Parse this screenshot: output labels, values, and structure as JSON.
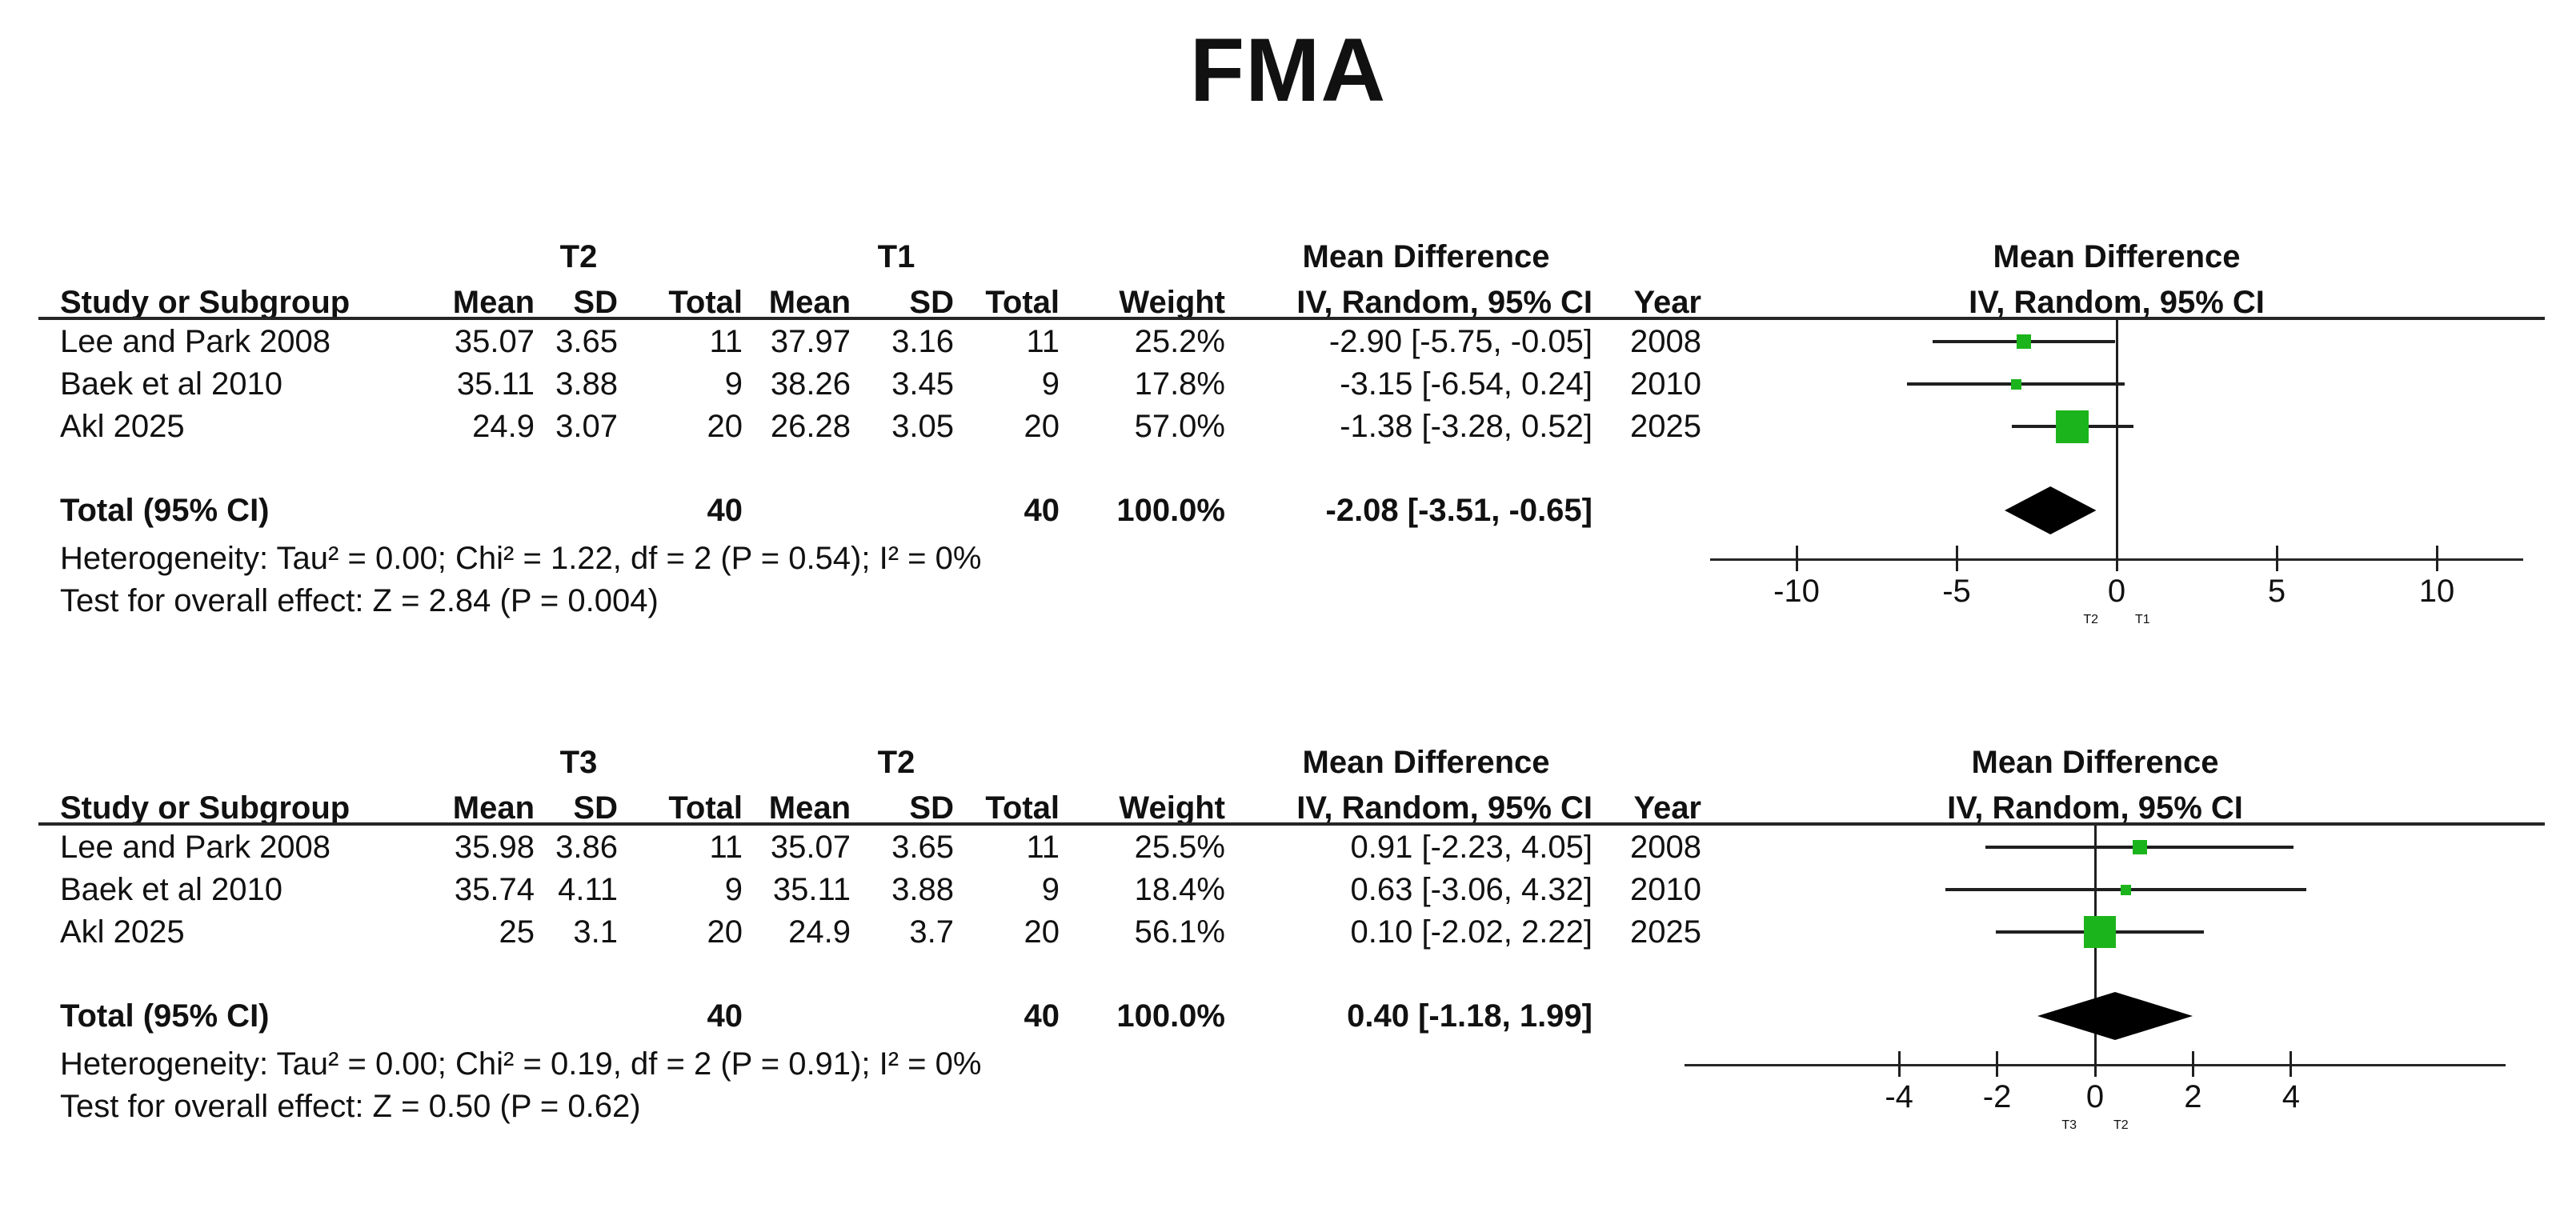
{
  "title": "FMA",
  "colors": {
    "marker_green": "#1cb41c",
    "diamond_black": "#000000",
    "line_dark": "#1f1f1f"
  },
  "chart_data": [
    {
      "type": "scatter",
      "plot_title": "FMA",
      "groups": {
        "exp": "T2",
        "ctrl": "T1"
      },
      "col_headers": {
        "study": "Study or Subgroup",
        "mean": "Mean",
        "sd": "SD",
        "total": "Total",
        "weight": "Weight",
        "effect_title": "Mean Difference",
        "effect_sub": "IV, Random, 95% CI",
        "year": "Year"
      },
      "rows": [
        {
          "study": "Lee and Park 2008",
          "mean_e": "35.07",
          "sd_e": "3.65",
          "n_e": "11",
          "mean_c": "37.97",
          "sd_c": "3.16",
          "n_c": "11",
          "weight": "25.2%",
          "weight_val": 25.2,
          "ci_text": "-2.90 [-5.75, -0.05]",
          "year": "2008",
          "est": -2.9,
          "lo": -5.75,
          "hi": -0.05
        },
        {
          "study": "Baek et al 2010",
          "mean_e": "35.11",
          "sd_e": "3.88",
          "n_e": "9",
          "mean_c": "38.26",
          "sd_c": "3.45",
          "n_c": "9",
          "weight": "17.8%",
          "weight_val": 17.8,
          "ci_text": "-3.15 [-6.54, 0.24]",
          "year": "2010",
          "est": -3.15,
          "lo": -6.54,
          "hi": 0.24
        },
        {
          "study": "Akl 2025",
          "mean_e": "24.9",
          "sd_e": "3.07",
          "n_e": "20",
          "mean_c": "26.28",
          "sd_c": "3.05",
          "n_c": "20",
          "weight": "57.0%",
          "weight_val": 57.0,
          "ci_text": "-1.38 [-3.28, 0.52]",
          "year": "2025",
          "est": -1.38,
          "lo": -3.28,
          "hi": 0.52
        }
      ],
      "total": {
        "label": "Total (95% CI)",
        "n_e": "40",
        "n_c": "40",
        "weight": "100.0%",
        "ci_text": "-2.08 [-3.51, -0.65]",
        "est": -2.08,
        "lo": -3.51,
        "hi": -0.65
      },
      "heterogeneity": "Heterogeneity: Tau² = 0.00; Chi² = 1.22, df = 2 (P = 0.54); I² = 0%",
      "overall_test": "Test for overall effect: Z = 2.84 (P = 0.004)",
      "axis": {
        "min": -12.5,
        "max": 12.5,
        "ticks": [
          -10,
          -5,
          0,
          5,
          10
        ],
        "tick_labels": [
          "-10",
          "-5",
          "0",
          "5",
          "10"
        ],
        "favours_left": "T2",
        "favours_right": "T1"
      }
    },
    {
      "type": "scatter",
      "plot_title": "FMA",
      "groups": {
        "exp": "T3",
        "ctrl": "T2"
      },
      "col_headers": {
        "study": "Study or Subgroup",
        "mean": "Mean",
        "sd": "SD",
        "total": "Total",
        "weight": "Weight",
        "effect_title": "Mean Difference",
        "effect_sub": "IV, Random, 95% CI",
        "year": "Year"
      },
      "rows": [
        {
          "study": "Lee and Park 2008",
          "mean_e": "35.98",
          "sd_e": "3.86",
          "n_e": "11",
          "mean_c": "35.07",
          "sd_c": "3.65",
          "n_c": "11",
          "weight": "25.5%",
          "weight_val": 25.5,
          "ci_text": "0.91 [-2.23, 4.05]",
          "year": "2008",
          "est": 0.91,
          "lo": -2.23,
          "hi": 4.05
        },
        {
          "study": "Baek et al 2010",
          "mean_e": "35.74",
          "sd_e": "4.11",
          "n_e": "9",
          "mean_c": "35.11",
          "sd_c": "3.88",
          "n_c": "9",
          "weight": "18.4%",
          "weight_val": 18.4,
          "ci_text": "0.63 [-3.06, 4.32]",
          "year": "2010",
          "est": 0.63,
          "lo": -3.06,
          "hi": 4.32
        },
        {
          "study": "Akl 2025",
          "mean_e": "25",
          "sd_e": "3.1",
          "n_e": "20",
          "mean_c": "24.9",
          "sd_c": "3.7",
          "n_c": "20",
          "weight": "56.1%",
          "weight_val": 56.1,
          "ci_text": "0.10 [-2.02, 2.22]",
          "year": "2025",
          "est": 0.1,
          "lo": -2.02,
          "hi": 2.22
        }
      ],
      "total": {
        "label": "Total (95% CI)",
        "n_e": "40",
        "n_c": "40",
        "weight": "100.0%",
        "ci_text": "0.40 [-1.18, 1.99]",
        "est": 0.4,
        "lo": -1.18,
        "hi": 1.99
      },
      "heterogeneity": "Heterogeneity: Tau² = 0.00; Chi² = 0.19, df = 2 (P = 0.91); I² = 0%",
      "overall_test": "Test for overall effect: Z = 0.50 (P = 0.62)",
      "axis": {
        "min": -8.25,
        "max": 8.25,
        "ticks": [
          -4,
          -2,
          0,
          2,
          4
        ],
        "tick_labels": [
          "-4",
          "-2",
          "0",
          "2",
          "4"
        ],
        "favours_left": "T3",
        "favours_right": "T2"
      }
    }
  ]
}
